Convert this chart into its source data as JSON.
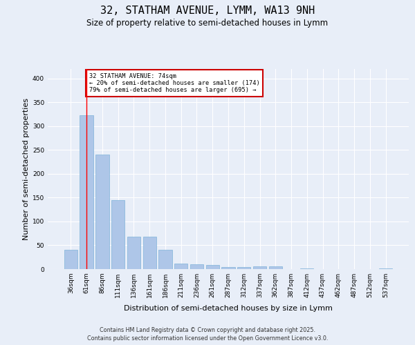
{
  "title": "32, STATHAM AVENUE, LYMM, WA13 9NH",
  "subtitle": "Size of property relative to semi-detached houses in Lymm",
  "xlabel": "Distribution of semi-detached houses by size in Lymm",
  "ylabel": "Number of semi-detached properties",
  "categories": [
    "36sqm",
    "61sqm",
    "86sqm",
    "111sqm",
    "136sqm",
    "161sqm",
    "186sqm",
    "211sqm",
    "236sqm",
    "261sqm",
    "287sqm",
    "312sqm",
    "337sqm",
    "362sqm",
    "387sqm",
    "412sqm",
    "437sqm",
    "462sqm",
    "487sqm",
    "512sqm",
    "537sqm"
  ],
  "values": [
    40,
    323,
    240,
    145,
    68,
    68,
    40,
    12,
    10,
    8,
    5,
    4,
    6,
    6,
    0,
    2,
    0,
    0,
    0,
    0,
    2
  ],
  "bar_color": "#aec6e8",
  "bar_edge_color": "#7fb3d9",
  "bg_color": "#e8eef8",
  "grid_color": "#ffffff",
  "annotation_text": "32 STATHAM AVENUE: 74sqm\n← 20% of semi-detached houses are smaller (174)\n79% of semi-detached houses are larger (695) →",
  "annotation_box_color": "#ffffff",
  "annotation_box_edge_color": "#cc0000",
  "property_line_x": 1.0,
  "ylim": [
    0,
    420
  ],
  "yticks": [
    0,
    50,
    100,
    150,
    200,
    250,
    300,
    350,
    400
  ],
  "footer": "Contains HM Land Registry data © Crown copyright and database right 2025.\nContains public sector information licensed under the Open Government Licence v3.0.",
  "title_fontsize": 11,
  "subtitle_fontsize": 8.5,
  "axis_label_fontsize": 8,
  "tick_fontsize": 6.5,
  "footer_fontsize": 5.8
}
